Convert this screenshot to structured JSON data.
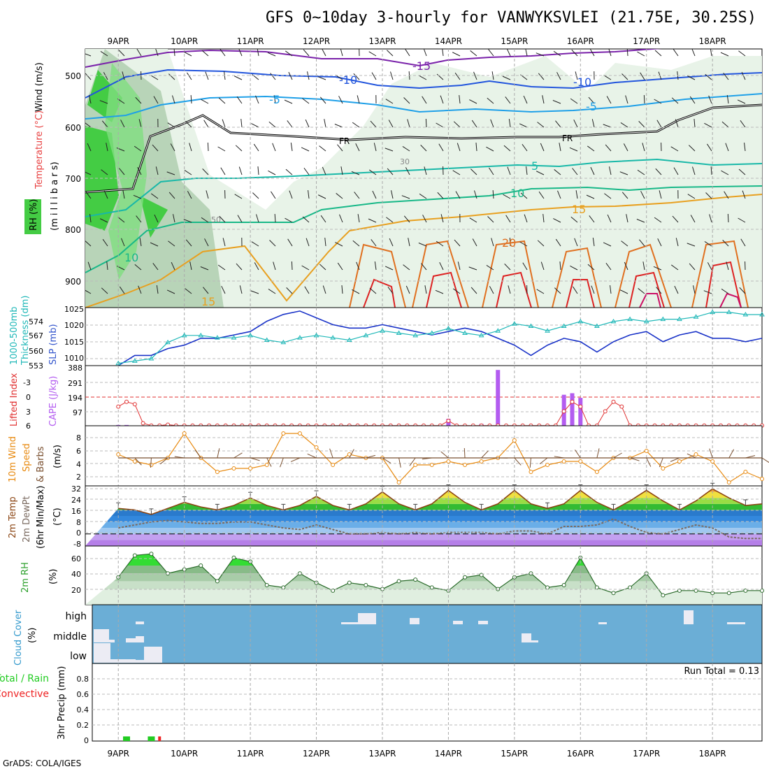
{
  "title": "GFS 0~10day 3-hourly for VANWYKSVLEI (21.75E, 30.25S)",
  "footer": "GrADS: COLA/IGES",
  "dates": [
    "9APR",
    "10APR",
    "11APR",
    "12APR",
    "13APR",
    "14APR",
    "15APR",
    "16APR",
    "17APR",
    "18APR"
  ],
  "colors": {
    "slp": "#1a33c8",
    "thickness": "#20b8b8",
    "li": "#e03030",
    "cape": "#b35cf0",
    "wind": "#e88a10",
    "barb": "#7a5030",
    "temp": "#8b4513",
    "dew": "#7a6a60",
    "rh": "#2ca02c",
    "cloud_bg": "#6baed6",
    "precip_total": "#22cc22",
    "precip_conv": "#ee2222"
  },
  "panels": {
    "upper": {
      "ylabel_1": "Wind (m/s)",
      "ylabel_2": "Temperature (°C)",
      "ylabel_3": "(m i l l i b a r s)",
      "ylabel_4": "RH (%)",
      "yticks": [
        "500",
        "600",
        "700",
        "800",
        "900"
      ],
      "contour_labels": [
        "-15",
        "-10",
        "-5",
        "FR",
        "5",
        "10",
        "15",
        "20",
        "10",
        "15",
        "-10",
        "-5",
        "FR",
        "30",
        "50"
      ]
    },
    "slp": {
      "ylabel_1": "SLP (mb)",
      "ylabel_2": "1000-500mb",
      "ylabel_3": "Thickness (dm)",
      "slp_ticks": [
        "1025",
        "1020",
        "1015",
        "1010"
      ],
      "thick_ticks": [
        "574",
        "567",
        "560",
        "553"
      ]
    },
    "cape": {
      "ylabel_1": "Lifted Index",
      "ylabel_2": "CAPE (J/kg)",
      "li_ticks": [
        "-3",
        "0",
        "3",
        "6"
      ],
      "cape_ticks": [
        "388",
        "291",
        "194",
        "97"
      ]
    },
    "wind": {
      "ylabel_1": "10m Wind",
      "ylabel_2": "Speed",
      "ylabel_3": "& Barbs",
      "ylabel_4": "(m/s)",
      "yticks": [
        "8",
        "6",
        "4",
        "2"
      ]
    },
    "temp": {
      "ylabel_1": "2m Temp",
      "ylabel_2": "2m DewPt",
      "ylabel_3": "(6hr Min/Max)",
      "ylabel_4": "(°C)",
      "yticks": [
        "32",
        "24",
        "16",
        "8",
        "0",
        "-8"
      ]
    },
    "rh": {
      "ylabel_1": "2m RH",
      "ylabel_2": "(%)",
      "yticks": [
        "60",
        "40",
        "20"
      ]
    },
    "cloud": {
      "ylabel_1": "Cloud Cover",
      "ylabel_2": "(%)",
      "levels": [
        "high",
        "middle",
        "low"
      ]
    },
    "precip": {
      "ylabel_1": "Total / Rain",
      "ylabel_2": "Convective",
      "ylabel_3": "3hr Precip (mm)",
      "yticks": [
        "0.8",
        "0.6",
        "0.4",
        "0.2",
        "0"
      ],
      "ytick_top": "0.8",
      "run_total": "Run Total = 0.13"
    }
  },
  "chart_data": [
    {
      "type": "line",
      "name": "slp",
      "title": "SLP (mb)",
      "xlabel": "",
      "ylabel": "SLP (mb)",
      "ylim": [
        1008,
        1025
      ],
      "x_hours": [
        0,
        6,
        12,
        18,
        24,
        30,
        36,
        42,
        48,
        54,
        60,
        66,
        72,
        78,
        84,
        90,
        96,
        102,
        108,
        114,
        120,
        126,
        132,
        138,
        144,
        150,
        156,
        162,
        168,
        174,
        180,
        186,
        192,
        198,
        204,
        210,
        216,
        222,
        228,
        234
      ],
      "values": [
        1008,
        1011,
        1011,
        1013,
        1014,
        1016,
        1016,
        1017,
        1018,
        1021,
        1023,
        1024,
        1022,
        1020,
        1019,
        1019,
        1020,
        1019,
        1018,
        1017,
        1018,
        1019,
        1018,
        1016,
        1014,
        1011,
        1014,
        1016,
        1015,
        1012,
        1015,
        1017,
        1018,
        1015,
        1017,
        1018,
        1016,
        1016,
        1015,
        1016
      ]
    },
    {
      "type": "line",
      "name": "thickness",
      "title": "1000-500mb Thickness (dm)",
      "xlabel": "",
      "ylabel": "Thickness (dm)",
      "ylim": [
        553,
        578
      ],
      "x_hours": [
        0,
        6,
        12,
        18,
        24,
        30,
        36,
        42,
        48,
        54,
        60,
        66,
        72,
        78,
        84,
        90,
        96,
        102,
        108,
        114,
        120,
        126,
        132,
        138,
        144,
        150,
        156,
        162,
        168,
        174,
        180,
        186,
        192,
        198,
        204,
        210,
        216,
        222,
        228,
        234
      ],
      "values": [
        554,
        555,
        556,
        563,
        566,
        566,
        565,
        565,
        566,
        564,
        563,
        565,
        566,
        565,
        564,
        566,
        568,
        567,
        566,
        567,
        569,
        567,
        566,
        568,
        571,
        570,
        568,
        570,
        572,
        570,
        572,
        573,
        572,
        573,
        573,
        574,
        576,
        576,
        575,
        575
      ]
    },
    {
      "type": "line",
      "name": "lifted_index",
      "title": "Lifted Index",
      "xlabel": "",
      "ylabel": "Lifted Index",
      "ylim": [
        6,
        -4.4
      ],
      "x_hours": [
        0,
        3,
        6,
        9,
        12,
        15,
        18,
        21,
        24,
        27,
        30,
        33,
        36,
        39,
        42,
        45,
        48,
        51,
        54,
        57,
        60,
        63,
        66,
        69,
        72,
        75,
        78,
        81,
        84,
        87,
        90,
        93,
        96,
        99,
        102,
        105,
        108,
        111,
        114,
        117,
        120,
        123,
        126,
        129,
        132,
        135,
        138,
        141,
        144,
        147,
        150,
        153,
        156,
        159,
        162,
        165,
        168,
        171,
        174,
        177,
        180,
        183,
        186,
        189,
        192,
        195,
        198,
        201,
        204,
        207,
        210,
        213,
        216,
        219,
        222,
        225,
        228,
        231,
        234
      ],
      "values": [
        2,
        1,
        1.5,
        5.5,
        6,
        6,
        5.8,
        6,
        6,
        6,
        6,
        6,
        6,
        6,
        6,
        6,
        6,
        6,
        6,
        6,
        6,
        6,
        6,
        6,
        6,
        6,
        6,
        6,
        6,
        6,
        6,
        6,
        6,
        6,
        6,
        6,
        6,
        6,
        6,
        6,
        5,
        6,
        6,
        6,
        6,
        6,
        6,
        6,
        6,
        6,
        6,
        6,
        6,
        6,
        3,
        1,
        2,
        6,
        6,
        3,
        1,
        2,
        6,
        6,
        6,
        6,
        6,
        6,
        6,
        6,
        6,
        6,
        6,
        6,
        6,
        6,
        6,
        6,
        6
      ]
    },
    {
      "type": "bar",
      "name": "cape",
      "title": "CAPE (J/kg)",
      "xlabel": "",
      "ylabel": "CAPE (J/kg)",
      "ylim": [
        0,
        388
      ],
      "x_hours": [
        0,
        3,
        21,
        24,
        120,
        132,
        138,
        162,
        165,
        168
      ],
      "values": [
        5,
        5,
        5,
        5,
        45,
        12,
        360,
        200,
        210,
        180
      ]
    },
    {
      "type": "line",
      "name": "wind_speed",
      "title": "10m Wind Speed (m/s)",
      "xlabel": "",
      "ylabel": "Speed (m/s)",
      "ylim": [
        1,
        9
      ],
      "x_hours": [
        0,
        6,
        12,
        18,
        24,
        30,
        36,
        42,
        48,
        54,
        60,
        66,
        72,
        78,
        84,
        90,
        96,
        102,
        108,
        114,
        120,
        126,
        132,
        138,
        144,
        150,
        156,
        162,
        168,
        174,
        180,
        186,
        192,
        198,
        204,
        210,
        216,
        222,
        228,
        234
      ],
      "values": [
        5.5,
        4.5,
        4,
        5,
        8.5,
        5,
        3,
        3.5,
        3.5,
        4,
        8.5,
        8.5,
        6.5,
        4,
        5.5,
        5,
        5,
        1.5,
        4,
        4,
        4.5,
        4,
        4.5,
        5,
        7.5,
        3,
        4,
        4.5,
        4.5,
        3,
        5,
        5,
        6,
        3.5,
        4.5,
        5.5,
        4.5,
        1.5,
        3,
        2
      ]
    },
    {
      "type": "area",
      "name": "temp_2m",
      "title": "2m Temp (°C)",
      "xlabel": "",
      "ylabel": "°C",
      "ylim": [
        -8,
        32
      ],
      "x_hours": [
        0,
        6,
        12,
        18,
        24,
        30,
        36,
        42,
        48,
        54,
        60,
        66,
        72,
        78,
        84,
        90,
        96,
        102,
        108,
        114,
        120,
        126,
        132,
        138,
        144,
        150,
        156,
        162,
        168,
        174,
        180,
        186,
        192,
        198,
        204,
        210,
        216,
        222,
        228,
        234
      ],
      "values": [
        17,
        16,
        13,
        17,
        21,
        18,
        16,
        19,
        24,
        19,
        16,
        19,
        25,
        19,
        16,
        20,
        28,
        20,
        16,
        20,
        29,
        21,
        16,
        20,
        29,
        20,
        17,
        20,
        29,
        21,
        16,
        22,
        29,
        22,
        16,
        22,
        30,
        24,
        19,
        20
      ]
    },
    {
      "type": "line",
      "name": "dewpt_2m",
      "title": "2m DewPt (°C)",
      "xlabel": "",
      "ylabel": "°C",
      "ylim": [
        -8,
        32
      ],
      "x_hours": [
        0,
        6,
        12,
        18,
        24,
        30,
        36,
        42,
        48,
        54,
        60,
        66,
        72,
        78,
        84,
        90,
        96,
        102,
        108,
        114,
        120,
        126,
        132,
        138,
        144,
        150,
        156,
        162,
        168,
        174,
        180,
        186,
        192,
        198,
        204,
        210,
        216,
        222,
        228,
        234
      ],
      "values": [
        4,
        6,
        8,
        9,
        8,
        7,
        7,
        8,
        8,
        6,
        4,
        3,
        6,
        3,
        0,
        0,
        1,
        0,
        1,
        0,
        1,
        1,
        1,
        0,
        2,
        2,
        0,
        5,
        5,
        6,
        10,
        5,
        1,
        0,
        3,
        6,
        4,
        -2,
        -3,
        -3
      ]
    },
    {
      "type": "area",
      "name": "rh_2m",
      "title": "2m RH (%)",
      "xlabel": "",
      "ylabel": "(%)",
      "ylim": [
        0,
        75
      ],
      "x_hours": [
        0,
        6,
        12,
        18,
        24,
        30,
        36,
        42,
        48,
        54,
        60,
        66,
        72,
        78,
        84,
        90,
        96,
        102,
        108,
        114,
        120,
        126,
        132,
        138,
        144,
        150,
        156,
        162,
        168,
        174,
        180,
        186,
        192,
        198,
        204,
        210,
        216,
        222,
        228,
        234
      ],
      "values": [
        35,
        63,
        65,
        40,
        45,
        50,
        30,
        60,
        55,
        25,
        22,
        40,
        28,
        18,
        28,
        25,
        20,
        30,
        32,
        22,
        18,
        35,
        38,
        20,
        35,
        40,
        22,
        25,
        60,
        22,
        15,
        22,
        40,
        12,
        18,
        18,
        15,
        15,
        18,
        18
      ]
    },
    {
      "type": "bar",
      "name": "precip_3hr",
      "title": "3hr Precip (mm)",
      "xlabel": "",
      "ylabel": "3hr Precip (mm)",
      "ylim": [
        0,
        1
      ],
      "series": [
        {
          "name": "Total / Rain",
          "x_hours": [
            3,
            12
          ],
          "values": [
            0.06,
            0.06
          ]
        },
        {
          "name": "Convective",
          "x_hours": [
            15
          ],
          "values": [
            0.06
          ]
        }
      ]
    }
  ]
}
